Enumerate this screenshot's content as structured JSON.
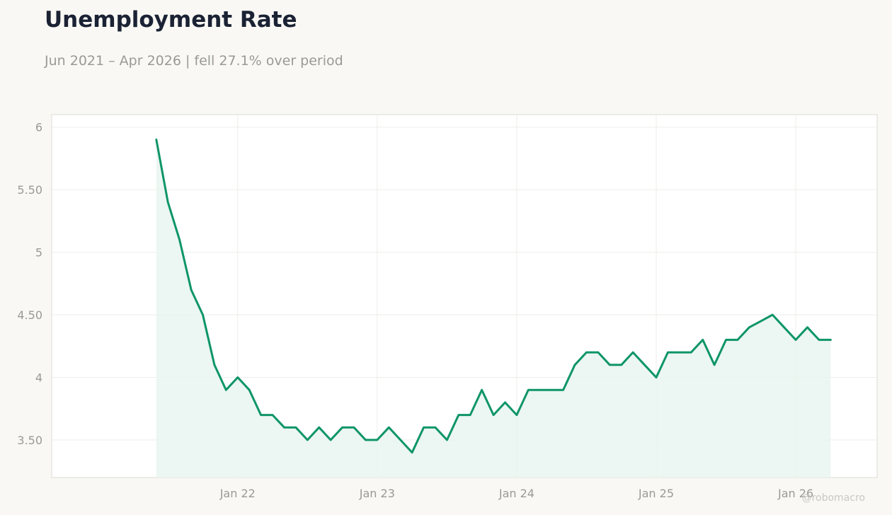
{
  "header": {
    "title": "Unemployment Rate",
    "subtitle": "Jun 2021 – Apr 2026 | fell 27.1% over period"
  },
  "watermark": "@robomacro",
  "colors": {
    "line": "#0e9567",
    "fill": "#e9f5f0",
    "grid": "#ededea",
    "axis_text": "#9a9a95",
    "title": "#1b2234"
  },
  "chart_data": {
    "type": "area",
    "title": "Unemployment Rate",
    "subtitle": "Jun 2021 – Apr 2026 | fell 27.1% over period",
    "xlabel": "",
    "ylabel": "",
    "x_start": "2021-06",
    "x_end": "2026-04",
    "x_range": [
      "2020-09",
      "2026-08"
    ],
    "ylim": [
      3.2,
      6.1
    ],
    "grid": true,
    "x_ticks": [
      {
        "date": "2022-01",
        "label": "Jan 22"
      },
      {
        "date": "2023-01",
        "label": "Jan 23"
      },
      {
        "date": "2024-01",
        "label": "Jan 24"
      },
      {
        "date": "2025-01",
        "label": "Jan 25"
      },
      {
        "date": "2026-01",
        "label": "Jan 26"
      }
    ],
    "y_ticks": [
      {
        "value": 3.5,
        "label": "3.50"
      },
      {
        "value": 4,
        "label": "4"
      },
      {
        "value": 4.5,
        "label": "4.50"
      },
      {
        "value": 5,
        "label": "5"
      },
      {
        "value": 5.5,
        "label": "5.50"
      },
      {
        "value": 6,
        "label": "6"
      }
    ],
    "series": [
      {
        "values": [
          5.9,
          5.4,
          5.1,
          4.7,
          4.5,
          4.1,
          3.9,
          4.0,
          3.9,
          3.7,
          3.7,
          3.6,
          3.6,
          3.5,
          3.6,
          3.5,
          3.6,
          3.6,
          3.5,
          3.5,
          3.6,
          3.5,
          3.4,
          3.6,
          3.6,
          3.5,
          3.7,
          3.7,
          3.9,
          3.7,
          3.8,
          3.7,
          3.9,
          3.9,
          3.9,
          3.9,
          4.1,
          4.2,
          4.2,
          4.1,
          4.1,
          4.2,
          4.1,
          4.0,
          4.2,
          4.2,
          4.2,
          4.3,
          4.1,
          4.3,
          4.3,
          4.4,
          4.45,
          4.5,
          4.4,
          4.3,
          4.4,
          4.3,
          4.3
        ]
      }
    ]
  }
}
